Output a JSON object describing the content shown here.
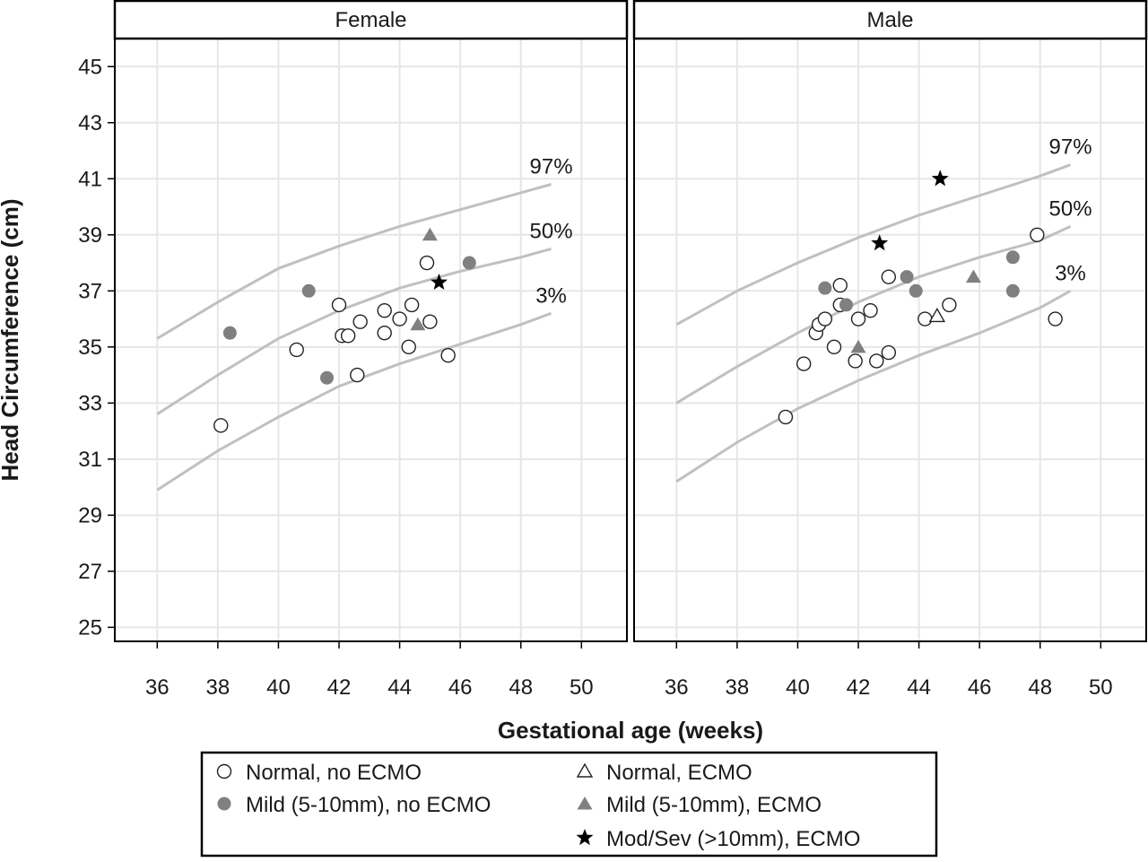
{
  "chart_data": {
    "type": "scatter",
    "xlabel": "Gestational age (weeks)",
    "ylabel": "Head Circumference (cm)",
    "xlim": [
      34.6,
      51.5
    ],
    "ylim": [
      24.5,
      46
    ],
    "x_ticks": [
      36,
      38,
      40,
      42,
      44,
      46,
      48,
      50
    ],
    "y_ticks": [
      25,
      27,
      29,
      31,
      33,
      35,
      37,
      39,
      41,
      43,
      45
    ],
    "grid": true,
    "legend_position": "bottom",
    "colors": {
      "percentile_line": "#c0c0c0",
      "grid": "#e6e6e6",
      "mild": "#808080",
      "severe": "#000000",
      "frame": "#000000"
    },
    "legend": [
      {
        "key": "normal_no_ecmo",
        "label": "Normal, no ECMO",
        "marker": "open-circle"
      },
      {
        "key": "normal_ecmo",
        "label": "Normal, ECMO",
        "marker": "open-triangle"
      },
      {
        "key": "mild_no_ecmo",
        "label": "Mild (5-10mm), no ECMO",
        "marker": "filled-circle"
      },
      {
        "key": "mild_ecmo",
        "label": "Mild (5-10mm), ECMO",
        "marker": "filled-triangle"
      },
      {
        "key": "severe_ecmo",
        "label": "Mod/Sev (>10mm), ECMO",
        "marker": "star"
      }
    ],
    "panels": [
      {
        "title": "Female",
        "percentiles": [
          {
            "label": "97%",
            "x": [
              36,
              38,
              40,
              42,
              44,
              46,
              48,
              49
            ],
            "y": [
              35.3,
              36.6,
              37.8,
              38.6,
              39.3,
              39.9,
              40.5,
              40.8
            ]
          },
          {
            "label": "50%",
            "x": [
              36,
              38,
              40,
              42,
              44,
              46,
              48,
              49
            ],
            "y": [
              32.6,
              34.0,
              35.3,
              36.3,
              37.1,
              37.7,
              38.2,
              38.5
            ]
          },
          {
            "label": "3%",
            "x": [
              36,
              38,
              40,
              42,
              44,
              46,
              48,
              49
            ],
            "y": [
              29.9,
              31.3,
              32.5,
              33.6,
              34.4,
              35.1,
              35.8,
              36.2
            ]
          }
        ],
        "points": {
          "normal_no_ecmo": [
            [
              38.1,
              32.2
            ],
            [
              40.6,
              34.9
            ],
            [
              42.0,
              36.5
            ],
            [
              42.1,
              35.4
            ],
            [
              42.3,
              35.4
            ],
            [
              42.6,
              34.0
            ],
            [
              42.7,
              35.9
            ],
            [
              43.5,
              36.3
            ],
            [
              43.5,
              35.5
            ],
            [
              44.0,
              36.0
            ],
            [
              44.3,
              35.0
            ],
            [
              44.4,
              36.5
            ],
            [
              44.9,
              38.0
            ],
            [
              45.0,
              35.9
            ],
            [
              45.6,
              34.7
            ]
          ],
          "mild_no_ecmo": [
            [
              38.4,
              35.5
            ],
            [
              41.0,
              37.0
            ],
            [
              41.6,
              33.9
            ],
            [
              46.3,
              38.0
            ]
          ],
          "mild_ecmo": [
            [
              44.6,
              35.8
            ],
            [
              45.0,
              39.0
            ]
          ],
          "normal_ecmo": [],
          "severe_ecmo": [
            [
              45.3,
              37.3
            ]
          ]
        }
      },
      {
        "title": "Male",
        "percentiles": [
          {
            "label": "97%",
            "x": [
              36,
              38,
              40,
              42,
              44,
              46,
              48,
              49
            ],
            "y": [
              35.8,
              37.0,
              38.0,
              38.9,
              39.7,
              40.4,
              41.1,
              41.5
            ]
          },
          {
            "label": "50%",
            "x": [
              36,
              38,
              40,
              42,
              44,
              46,
              48,
              49
            ],
            "y": [
              33.0,
              34.3,
              35.5,
              36.6,
              37.5,
              38.2,
              38.8,
              39.3
            ]
          },
          {
            "label": "3%",
            "x": [
              36,
              38,
              40,
              42,
              44,
              46,
              48,
              49
            ],
            "y": [
              30.2,
              31.6,
              32.8,
              33.8,
              34.7,
              35.5,
              36.4,
              37.0
            ]
          }
        ],
        "points": {
          "normal_no_ecmo": [
            [
              39.6,
              32.5
            ],
            [
              40.2,
              34.4
            ],
            [
              40.6,
              35.5
            ],
            [
              40.7,
              35.8
            ],
            [
              40.9,
              36.0
            ],
            [
              41.2,
              35.0
            ],
            [
              41.4,
              36.5
            ],
            [
              41.4,
              37.2
            ],
            [
              41.9,
              34.5
            ],
            [
              42.0,
              36.0
            ],
            [
              42.4,
              36.3
            ],
            [
              42.6,
              34.5
            ],
            [
              43.0,
              37.5
            ],
            [
              43.0,
              34.8
            ],
            [
              44.2,
              36.0
            ],
            [
              45.0,
              36.5
            ],
            [
              47.9,
              39.0
            ],
            [
              48.5,
              36.0
            ]
          ],
          "mild_no_ecmo": [
            [
              40.9,
              37.1
            ],
            [
              41.6,
              36.5
            ],
            [
              43.6,
              37.5
            ],
            [
              43.9,
              37.0
            ],
            [
              47.1,
              38.2
            ],
            [
              47.1,
              37.0
            ]
          ],
          "mild_ecmo": [
            [
              42.0,
              35.0
            ],
            [
              45.8,
              37.5
            ]
          ],
          "normal_ecmo": [
            [
              44.6,
              36.1
            ]
          ],
          "severe_ecmo": [
            [
              42.7,
              38.7
            ],
            [
              44.7,
              41.0
            ]
          ]
        }
      }
    ]
  }
}
